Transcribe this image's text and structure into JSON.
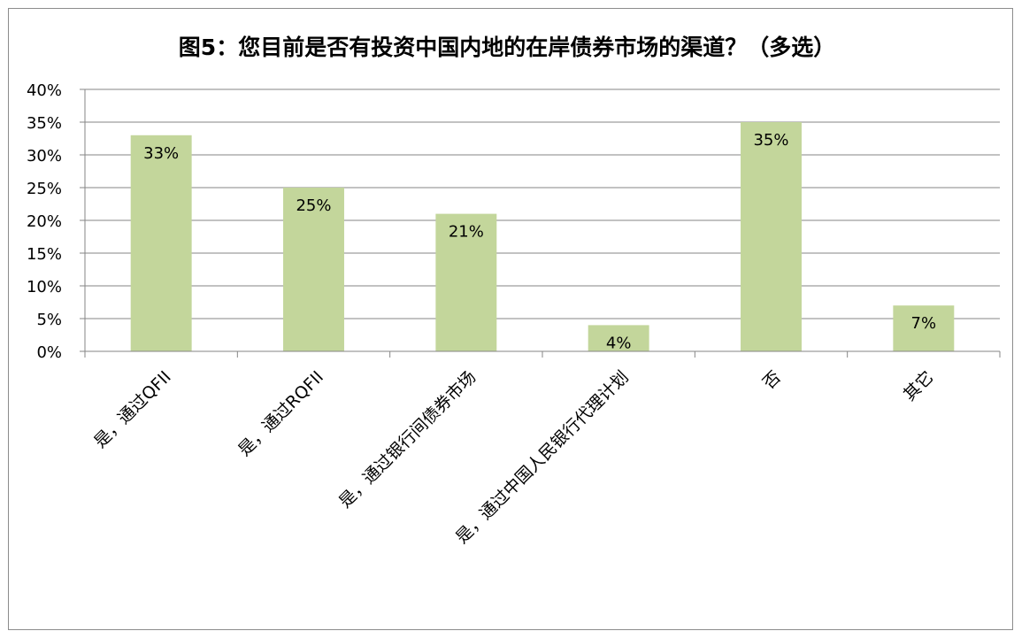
{
  "chart_data": {
    "type": "bar",
    "title": "图5：您目前是否有投资中国内地的在岸债券市场的渠道？（多选）",
    "categories": [
      "是，通过QFII",
      "是，通过RQFII",
      "是，通过银行间债券市场",
      "是，通过中国人民银行代理计划",
      "否",
      "其它"
    ],
    "values": [
      33,
      25,
      21,
      4,
      35,
      7
    ],
    "data_labels": [
      "33%",
      "25%",
      "21%",
      "4%",
      "35%",
      "7%"
    ],
    "y_ticks": [
      "0%",
      "5%",
      "10%",
      "15%",
      "20%",
      "25%",
      "30%",
      "35%",
      "40%"
    ],
    "ylim": [
      0,
      40
    ],
    "xlabel": "",
    "ylabel": "",
    "grid": true,
    "legend": "none",
    "bar_color": "#c3d69b"
  }
}
